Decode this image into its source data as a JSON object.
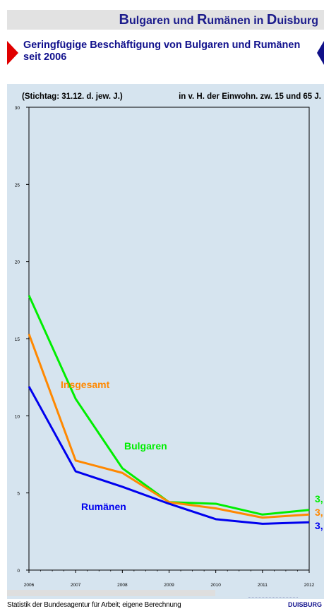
{
  "header": {
    "title_parts": [
      {
        "text": "B",
        "cap": true
      },
      {
        "text": "ulgaren und ",
        "cap": false
      },
      {
        "text": "R",
        "cap": true
      },
      {
        "text": "umänen in ",
        "cap": false
      },
      {
        "text": "D",
        "cap": true
      },
      {
        "text": "uisburg",
        "cap": false
      }
    ]
  },
  "subtitle": "Geringfügige Beschäftigung von Bulgaren und Rumänen seit 2006",
  "footer": {
    "source": "Statistik der Bundesagentur für Arbeit; eigene Berechnung",
    "logo": "DUISBURG"
  },
  "colors": {
    "bulgaren": "#00ee00",
    "insgesamt": "#ff8800",
    "rumaenen": "#0000ee"
  },
  "chart_data": {
    "type": "line",
    "title": "Geringfügige Beschäftigung von Bulgaren und Rumänen seit 2006",
    "note_left": "(Stichtag:  31.12. d. jew. J.)",
    "note_right": "in v. H. der Einwohn. zw. 15 und 65 J.",
    "x": [
      2006,
      2007,
      2008,
      2009,
      2010,
      2011,
      2012
    ],
    "xlabels": [
      "2006",
      "2007",
      "2008",
      "2009",
      "2010",
      "2011",
      "2012"
    ],
    "yticks": [
      0,
      5,
      10,
      15,
      20,
      25,
      30
    ],
    "ylim": [
      0,
      30
    ],
    "grid": false,
    "series": [
      {
        "name": "Bulgaren",
        "color": "#00ee00",
        "values": [
          17.8,
          11.1,
          6.6,
          4.4,
          4.3,
          3.6,
          3.9
        ],
        "end_label": "3,"
      },
      {
        "name": "Insgesamt",
        "color": "#ff8800",
        "values": [
          15.3,
          7.1,
          6.3,
          4.4,
          4.0,
          3.4,
          3.6
        ],
        "end_label": "3,"
      },
      {
        "name": "Rumänen",
        "color": "#0000ee",
        "values": [
          11.9,
          6.4,
          5.4,
          4.3,
          3.3,
          3.0,
          3.1
        ],
        "end_label": "3,"
      }
    ]
  }
}
